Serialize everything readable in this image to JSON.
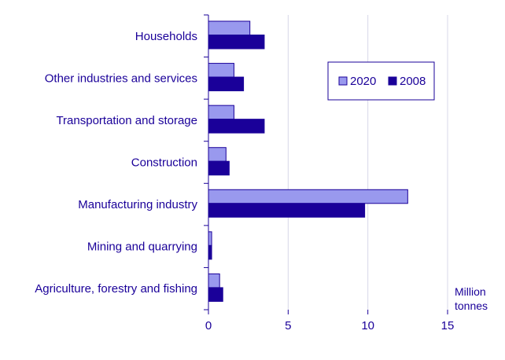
{
  "chart_data": {
    "type": "bar",
    "orientation": "horizontal",
    "categories": [
      "Households",
      "Other industries and services",
      "Transportation and storage",
      "Construction",
      "Manufacturing industry",
      "Mining and quarrying",
      "Agriculture, forestry and fishing"
    ],
    "series": [
      {
        "name": "2020",
        "color": "#9999ee",
        "values": [
          2.6,
          1.6,
          1.6,
          1.1,
          12.5,
          0.2,
          0.7
        ]
      },
      {
        "name": "2008",
        "color": "#1a0099",
        "values": [
          3.5,
          2.2,
          3.5,
          1.3,
          9.8,
          0.2,
          0.9
        ]
      }
    ],
    "xlim": [
      0,
      15
    ],
    "xticks": [
      "0",
      "5",
      "10",
      "15"
    ],
    "unit_label": [
      "Million",
      "tonnes"
    ],
    "grid": "vertical",
    "legend_position": "top-right",
    "text_color": "#1a0099",
    "axis_color": "#1a0099",
    "grid_color": "#d8d8e8"
  }
}
